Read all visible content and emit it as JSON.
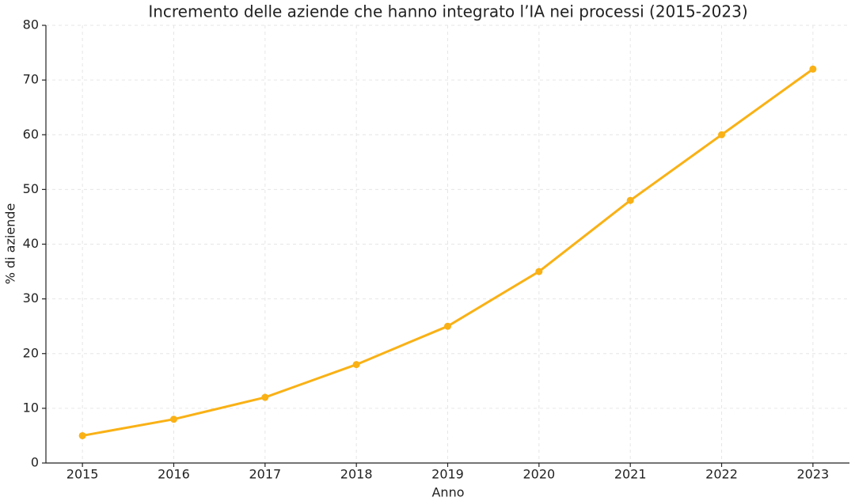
{
  "chart_data": {
    "type": "line",
    "title": "Incremento delle aziende che hanno integrato l’IA nei processi (2015-2023)",
    "xlabel": "Anno",
    "ylabel": "% di aziende",
    "x": [
      2015,
      2016,
      2017,
      2018,
      2019,
      2020,
      2021,
      2022,
      2023
    ],
    "values": [
      5,
      8,
      12,
      18,
      25,
      35,
      48,
      60,
      72
    ],
    "color": "#f9b115",
    "xlim": [
      2014.6,
      2023.4
    ],
    "xticks": [
      2015,
      2016,
      2017,
      2018,
      2019,
      2020,
      2021,
      2022,
      2023
    ],
    "ylim": [
      0,
      80
    ],
    "yticks": [
      0,
      10,
      20,
      30,
      40,
      50,
      60,
      70,
      80
    ],
    "grid": true
  }
}
